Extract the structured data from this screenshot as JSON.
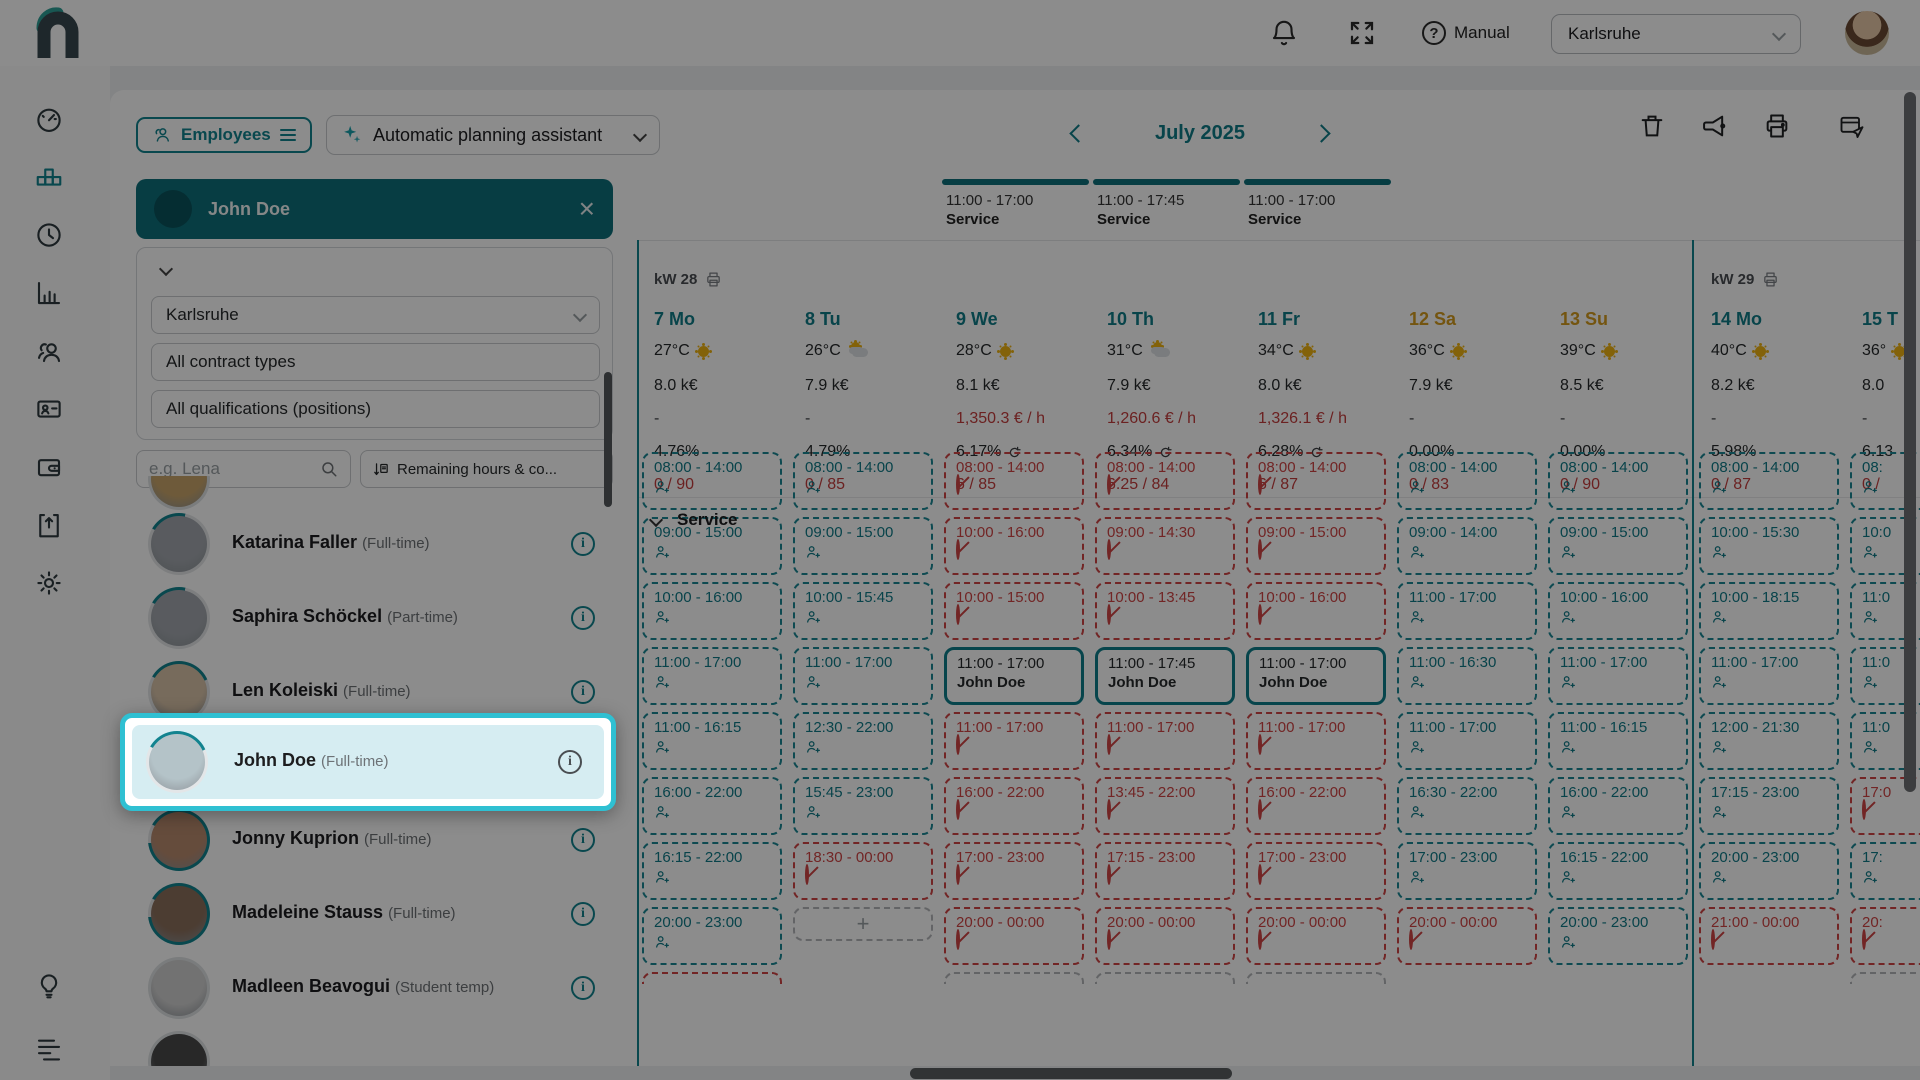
{
  "colors": {
    "accent": "#12838f",
    "header_teal": "#0d6f7a",
    "spotlight": "#2fc0d2",
    "danger": "#cf4444",
    "weekend": "#d49b1e"
  },
  "topbar": {
    "manual_label": "Manual",
    "location_value": "Karlsruhe",
    "icons": [
      "bell-icon",
      "fullscreen-icon",
      "help-icon",
      "avatar"
    ]
  },
  "sidebar": {
    "items": [
      {
        "icon": "dashboard-gauge-icon",
        "active": false
      },
      {
        "icon": "planning-grid-icon",
        "active": true
      },
      {
        "icon": "time-tracking-clock-icon",
        "active": false
      },
      {
        "icon": "reports-chart-icon",
        "active": false
      },
      {
        "icon": "employees-people-icon",
        "active": false
      },
      {
        "icon": "badge-card-icon",
        "active": false
      },
      {
        "icon": "wallet-icon",
        "active": false
      },
      {
        "icon": "export-box-icon",
        "active": false
      },
      {
        "icon": "settings-gear-icon",
        "active": false
      }
    ],
    "bottom_items": [
      {
        "icon": "tips-lightbulb-icon"
      },
      {
        "icon": "bottom-menu-icon"
      }
    ]
  },
  "toolbar": {
    "employees_button": "Employees",
    "assistant_label": "Automatic planning assistant",
    "month_label": "July 2025",
    "action_icons": [
      "trash-icon",
      "megaphone-icon",
      "printer-icon",
      "share-schedule-icon"
    ]
  },
  "employee_panel": {
    "selected_header": {
      "name": "John Doe"
    },
    "filters": {
      "location": "Karlsruhe",
      "contract_types": "All contract types",
      "qualifications": "All qualifications (positions)"
    },
    "search_placeholder": "e.g. Lena",
    "sort_button": "Remaining hours & co...",
    "employees": [
      {
        "partial": "top",
        "avatar": {
          "bg": "#c9a56a",
          "ring": 0
        }
      },
      {
        "name": "Katarina Faller",
        "contract": "(Full-time)",
        "avatar": {
          "bg": "#a2a7ad",
          "ring": 0.2
        }
      },
      {
        "name": "Saphira Schöckel",
        "contract": "(Part-time)",
        "avatar": {
          "bg": "#a2a7ad",
          "ring": 0.2
        }
      },
      {
        "name": "Len Koleiski",
        "contract": "(Full-time)",
        "avatar": {
          "bg": "#d9c3a8",
          "ring": 0.35
        }
      },
      {
        "name": "John Doe",
        "contract": "(Full-time)",
        "spotlighted": true,
        "avatar": {
          "bg": "#b4c3c8",
          "ring": 0.35
        }
      },
      {
        "name": "Jonny Kuprion",
        "contract": "(Full-time)",
        "avatar": {
          "bg": "#b98a6e",
          "ring": 0.9
        }
      },
      {
        "name": "Madeleine Stauss",
        "contract": "(Full-time)",
        "avatar": {
          "bg": "#8a6f5c",
          "ring": 0.9
        }
      },
      {
        "name": "Madleen Beavogui",
        "contract": "(Student temp)",
        "avatar": {
          "bg": "#cfcfcf",
          "ring": 0
        }
      },
      {
        "partial": "bottom",
        "avatar": {
          "bg": "#4a4a4a",
          "ring": 0
        }
      }
    ]
  },
  "spotlight": {
    "name": "John Doe",
    "contract": "(Full-time)"
  },
  "schedule": {
    "section_label": "Service",
    "fixed_shifts": [
      {
        "day_index": 2,
        "time": "11:00 - 17:00",
        "label": "Service"
      },
      {
        "day_index": 3,
        "time": "11:00 - 17:45",
        "label": "Service"
      },
      {
        "day_index": 4,
        "time": "11:00 - 17:00",
        "label": "Service"
      }
    ],
    "days": [
      {
        "week_label": "kW 28",
        "num": "7",
        "wd": "Mo",
        "weekend": false,
        "temp": "27°C",
        "weather": "sunny",
        "revenue": "8.0 k€",
        "rate": "-",
        "rate_red": false,
        "pct": "4.76%",
        "refresh": false,
        "quota": "0 / 90",
        "cells": [
          {
            "t": "08:00 - 14:00",
            "s": "open"
          },
          {
            "t": "09:00 - 15:00",
            "s": "open"
          },
          {
            "t": "10:00 - 16:00",
            "s": "open"
          },
          {
            "t": "11:00 - 17:00",
            "s": "open"
          },
          {
            "t": "11:00 - 16:15",
            "s": "open"
          },
          {
            "t": "16:00 - 22:00",
            "s": "open"
          },
          {
            "t": "16:15 - 22:00",
            "s": "open"
          },
          {
            "t": "20:00 - 23:00",
            "s": "open"
          },
          {
            "s": "stub-red"
          }
        ]
      },
      {
        "num": "8",
        "wd": "Tu",
        "weekend": false,
        "temp": "26°C",
        "weather": "partly",
        "revenue": "7.9 k€",
        "rate": "-",
        "rate_red": false,
        "pct": "4.79%",
        "refresh": false,
        "quota": "0 / 85",
        "cells": [
          {
            "t": "08:00 - 14:00",
            "s": "open"
          },
          {
            "t": "09:00 - 15:00",
            "s": "open"
          },
          {
            "t": "10:00 - 15:45",
            "s": "open"
          },
          {
            "t": "11:00 - 17:00",
            "s": "open"
          },
          {
            "t": "12:30 - 22:00",
            "s": "open"
          },
          {
            "t": "15:45 - 23:00",
            "s": "open"
          },
          {
            "t": "18:30 - 00:00",
            "s": "blocked"
          },
          {
            "s": "add"
          },
          null
        ]
      },
      {
        "num": "9",
        "wd": "We",
        "weekend": false,
        "temp": "28°C",
        "weather": "sunny",
        "revenue": "8.1 k€",
        "rate": "1,350.3 € / h",
        "rate_red": true,
        "pct": "6.17%",
        "refresh": true,
        "quota": "6 / 85",
        "cells": [
          {
            "t": "08:00 - 14:00",
            "s": "blocked"
          },
          {
            "t": "10:00 - 16:00",
            "s": "blocked"
          },
          {
            "t": "10:00 - 15:00",
            "s": "blocked"
          },
          {
            "t": "11:00 - 17:00",
            "s": "assigned",
            "label": "John Doe"
          },
          {
            "t": "11:00 - 17:00",
            "s": "blocked"
          },
          {
            "t": "16:00 - 22:00",
            "s": "blocked"
          },
          {
            "t": "17:00 - 23:00",
            "s": "blocked"
          },
          {
            "t": "20:00 - 00:00",
            "s": "blocked"
          },
          {
            "s": "stub-gray"
          }
        ]
      },
      {
        "num": "10",
        "wd": "Th",
        "weekend": false,
        "temp": "31°C",
        "weather": "partly",
        "revenue": "7.9 k€",
        "rate": "1,260.6 € / h",
        "rate_red": true,
        "pct": "6.34%",
        "refresh": true,
        "quota": "6.25 / 84",
        "cells": [
          {
            "t": "08:00 - 14:00",
            "s": "blocked"
          },
          {
            "t": "09:00 - 14:30",
            "s": "blocked"
          },
          {
            "t": "10:00 - 13:45",
            "s": "blocked"
          },
          {
            "t": "11:00 - 17:45",
            "s": "assigned",
            "label": "John Doe"
          },
          {
            "t": "11:00 - 17:00",
            "s": "blocked"
          },
          {
            "t": "13:45 - 22:00",
            "s": "blocked"
          },
          {
            "t": "17:15 - 23:00",
            "s": "blocked"
          },
          {
            "t": "20:00 - 00:00",
            "s": "blocked"
          },
          {
            "s": "stub-gray"
          }
        ]
      },
      {
        "num": "11",
        "wd": "Fr",
        "weekend": false,
        "temp": "34°C",
        "weather": "sunny",
        "revenue": "8.0 k€",
        "rate": "1,326.1 € / h",
        "rate_red": true,
        "pct": "6.28%",
        "refresh": true,
        "quota": "6 / 87",
        "cells": [
          {
            "t": "08:00 - 14:00",
            "s": "blocked"
          },
          {
            "t": "09:00 - 15:00",
            "s": "blocked"
          },
          {
            "t": "10:00 - 16:00",
            "s": "blocked"
          },
          {
            "t": "11:00 - 17:00",
            "s": "assigned",
            "label": "John Doe"
          },
          {
            "t": "11:00 - 17:00",
            "s": "blocked"
          },
          {
            "t": "16:00 - 22:00",
            "s": "blocked"
          },
          {
            "t": "17:00 - 23:00",
            "s": "blocked"
          },
          {
            "t": "20:00 - 00:00",
            "s": "blocked"
          },
          {
            "s": "stub-gray"
          }
        ]
      },
      {
        "num": "12",
        "wd": "Sa",
        "weekend": true,
        "temp": "36°C",
        "weather": "sunny",
        "revenue": "7.9 k€",
        "rate": "-",
        "rate_red": false,
        "pct": "0.00%",
        "refresh": false,
        "quota": "0 / 83",
        "cells": [
          {
            "t": "08:00 - 14:00",
            "s": "open"
          },
          {
            "t": "09:00 - 14:00",
            "s": "open"
          },
          {
            "t": "11:00 - 17:00",
            "s": "open"
          },
          {
            "t": "11:00 - 16:30",
            "s": "open"
          },
          {
            "t": "11:00 - 17:00",
            "s": "open"
          },
          {
            "t": "16:30 - 22:00",
            "s": "open"
          },
          {
            "t": "17:00 - 23:00",
            "s": "open"
          },
          {
            "t": "20:00 - 00:00",
            "s": "blocked"
          },
          null
        ]
      },
      {
        "num": "13",
        "wd": "Su",
        "weekend": true,
        "temp": "39°C",
        "weather": "sunny",
        "revenue": "8.5 k€",
        "rate": "-",
        "rate_red": false,
        "pct": "0.00%",
        "refresh": false,
        "quota": "0 / 90",
        "cells": [
          {
            "t": "08:00 - 14:00",
            "s": "open"
          },
          {
            "t": "09:00 - 15:00",
            "s": "open"
          },
          {
            "t": "10:00 - 16:00",
            "s": "open"
          },
          {
            "t": "11:00 - 17:00",
            "s": "open"
          },
          {
            "t": "11:00 - 16:15",
            "s": "open"
          },
          {
            "t": "16:00 - 22:00",
            "s": "open"
          },
          {
            "t": "16:15 - 22:00",
            "s": "open"
          },
          {
            "t": "20:00 - 23:00",
            "s": "open"
          },
          null
        ]
      },
      {
        "week_label": "kW 29",
        "week_start": true,
        "num": "14",
        "wd": "Mo",
        "weekend": false,
        "temp": "40°C",
        "weather": "sunny",
        "revenue": "8.2 k€",
        "rate": "-",
        "rate_red": false,
        "pct": "5.98%",
        "refresh": false,
        "quota": "0 / 87",
        "cells": [
          {
            "t": "08:00 - 14:00",
            "s": "open"
          },
          {
            "t": "10:00 - 15:30",
            "s": "open"
          },
          {
            "t": "10:00 - 18:15",
            "s": "open"
          },
          {
            "t": "11:00 - 17:00",
            "s": "open"
          },
          {
            "t": "12:00 - 21:30",
            "s": "open"
          },
          {
            "t": "17:15 - 23:00",
            "s": "open"
          },
          {
            "t": "20:00 - 23:00",
            "s": "open"
          },
          {
            "t": "21:00 - 00:00",
            "s": "blocked"
          },
          null
        ]
      },
      {
        "num": "15",
        "wd": "T",
        "weekend": false,
        "temp": "36°",
        "weather": "sunny",
        "revenue": "8.0",
        "rate": "-",
        "rate_red": false,
        "pct": "6.13",
        "refresh": false,
        "quota": "0 /",
        "cells": [
          {
            "t": "08:",
            "s": "open"
          },
          {
            "t": "10:0",
            "s": "open"
          },
          {
            "t": "11:0",
            "s": "open"
          },
          {
            "t": "11:0",
            "s": "open"
          },
          {
            "t": "11:0",
            "s": "open"
          },
          {
            "t": "17:0",
            "s": "blocked"
          },
          {
            "t": "17:",
            "s": "open"
          },
          {
            "t": "20:",
            "s": "blocked"
          },
          {
            "s": "stub-gray"
          }
        ]
      }
    ]
  }
}
